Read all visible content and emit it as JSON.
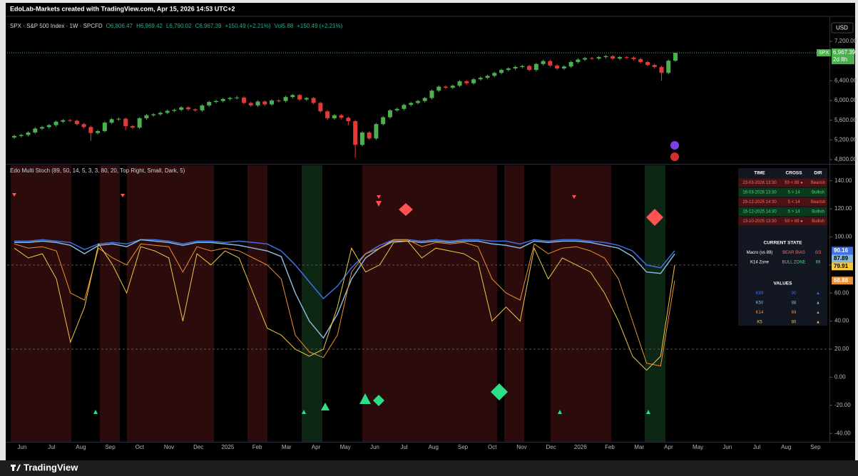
{
  "header": "EdoLab-Markets created with TradingView.com, Apr 15, 2026 14:53 UTC+2",
  "legend": [
    "SPX · S&P 500 Index · 1W · SPCFD",
    "O6,806.47",
    "H6,969.42",
    "L6,790.02",
    "C6,967.39",
    "+150.49 (+2.21%)",
    "Vol5.88",
    "+150.49 (+2.21%)"
  ],
  "currency": "USD",
  "price_tag": {
    "symbol": "SPX",
    "price": "6,967.39",
    "countdown": "2d 8h"
  },
  "time_labels": [
    "Jun",
    "Jul",
    "Aug",
    "Sep",
    "Oct",
    "Nov",
    "Dec",
    "2025",
    "Feb",
    "Mar",
    "Apr",
    "May",
    "Jun",
    "Jul",
    "Aug",
    "Sep",
    "Oct",
    "Nov",
    "Dec",
    "2026",
    "Feb",
    "Mar",
    "Apr",
    "May",
    "Jun",
    "Jul",
    "Aug",
    "Sep"
  ],
  "chart_data": [
    {
      "type": "candlestick",
      "up_color": "#4caf50",
      "down_color": "#e53935",
      "ylim": [
        4728,
        7605
      ],
      "yticks": [
        {
          "value": 7200,
          "label": "7,200.00"
        },
        {
          "value": 6400,
          "label": "6,400.00"
        },
        {
          "value": 6000,
          "label": "6,000.00"
        },
        {
          "value": 5600,
          "label": "5,600.00"
        },
        {
          "value": 5200,
          "label": "5,200.00"
        },
        {
          "value": 4800,
          "label": "4,800.00"
        }
      ],
      "grid": false,
      "ohlc": [
        [
          5250,
          5305,
          5220,
          5280
        ],
        [
          5280,
          5325,
          5250,
          5300
        ],
        [
          5300,
          5375,
          5270,
          5350
        ],
        [
          5350,
          5455,
          5320,
          5430
        ],
        [
          5430,
          5485,
          5400,
          5460
        ],
        [
          5460,
          5525,
          5430,
          5500
        ],
        [
          5500,
          5595,
          5470,
          5570
        ],
        [
          5570,
          5625,
          5540,
          5600
        ],
        [
          5600,
          5625,
          5560,
          5590
        ],
        [
          5590,
          5615,
          5490,
          5520
        ],
        [
          5520,
          5545,
          5430,
          5460
        ],
        [
          5460,
          5485,
          5180,
          5340
        ],
        [
          5340,
          5405,
          5310,
          5380
        ],
        [
          5380,
          5575,
          5350,
          5550
        ],
        [
          5550,
          5645,
          5520,
          5620
        ],
        [
          5620,
          5655,
          5590,
          5630
        ],
        [
          5630,
          5655,
          5400,
          5480
        ],
        [
          5480,
          5505,
          5420,
          5450
        ],
        [
          5450,
          5665,
          5420,
          5640
        ],
        [
          5640,
          5725,
          5610,
          5700
        ],
        [
          5700,
          5745,
          5670,
          5720
        ],
        [
          5720,
          5775,
          5690,
          5750
        ],
        [
          5750,
          5815,
          5720,
          5790
        ],
        [
          5790,
          5835,
          5760,
          5810
        ],
        [
          5810,
          5885,
          5780,
          5860
        ],
        [
          5860,
          5885,
          5790,
          5820
        ],
        [
          5820,
          5845,
          5770,
          5800
        ],
        [
          5800,
          5925,
          5770,
          5900
        ],
        [
          5900,
          5995,
          5870,
          5970
        ],
        [
          5970,
          6015,
          5940,
          5990
        ],
        [
          5990,
          6055,
          5960,
          6030
        ],
        [
          6030,
          6075,
          6000,
          6050
        ],
        [
          6050,
          6095,
          6020,
          6060
        ],
        [
          6060,
          6085,
          5920,
          5950
        ],
        [
          5950,
          5975,
          5870,
          5900
        ],
        [
          5900,
          6005,
          5870,
          5980
        ],
        [
          5980,
          6005,
          5890,
          5920
        ],
        [
          5920,
          6025,
          5890,
          6000
        ],
        [
          6000,
          6025,
          5960,
          5990
        ],
        [
          5990,
          6095,
          5960,
          6070
        ],
        [
          6070,
          6135,
          6040,
          6110
        ],
        [
          6110,
          6135,
          5990,
          6020
        ],
        [
          6020,
          6075,
          5990,
          6050
        ],
        [
          6050,
          6075,
          5920,
          5950
        ],
        [
          5950,
          5975,
          5750,
          5780
        ],
        [
          5780,
          5805,
          5610,
          5640
        ],
        [
          5640,
          5725,
          5610,
          5700
        ],
        [
          5700,
          5725,
          5620,
          5650
        ],
        [
          5650,
          5675,
          5500,
          5580
        ],
        [
          5580,
          5600,
          4840,
          5100
        ],
        [
          5100,
          5375,
          5070,
          5350
        ],
        [
          5350,
          5375,
          5200,
          5230
        ],
        [
          5230,
          5545,
          5200,
          5520
        ],
        [
          5520,
          5685,
          5490,
          5660
        ],
        [
          5660,
          5825,
          5630,
          5800
        ],
        [
          5800,
          5855,
          5770,
          5830
        ],
        [
          5830,
          5935,
          5800,
          5910
        ],
        [
          5910,
          5975,
          5880,
          5950
        ],
        [
          5950,
          6015,
          5920,
          5990
        ],
        [
          5990,
          6075,
          5960,
          6050
        ],
        [
          6050,
          6225,
          6020,
          6200
        ],
        [
          6200,
          6305,
          6170,
          6280
        ],
        [
          6280,
          6305,
          6230,
          6260
        ],
        [
          6260,
          6325,
          6230,
          6300
        ],
        [
          6300,
          6415,
          6270,
          6390
        ],
        [
          6390,
          6415,
          6320,
          6350
        ],
        [
          6350,
          6455,
          6320,
          6430
        ],
        [
          6430,
          6485,
          6400,
          6460
        ],
        [
          6460,
          6525,
          6430,
          6500
        ],
        [
          6500,
          6585,
          6470,
          6560
        ],
        [
          6560,
          6645,
          6530,
          6620
        ],
        [
          6620,
          6675,
          6590,
          6650
        ],
        [
          6650,
          6705,
          6620,
          6680
        ],
        [
          6680,
          6725,
          6650,
          6700
        ],
        [
          6700,
          6725,
          6590,
          6620
        ],
        [
          6620,
          6765,
          6590,
          6740
        ],
        [
          6740,
          6825,
          6710,
          6800
        ],
        [
          6800,
          6825,
          6680,
          6710
        ],
        [
          6710,
          6735,
          6620,
          6650
        ],
        [
          6650,
          6715,
          6620,
          6690
        ],
        [
          6690,
          6805,
          6660,
          6780
        ],
        [
          6780,
          6855,
          6750,
          6830
        ],
        [
          6830,
          6885,
          6800,
          6860
        ],
        [
          6860,
          6885,
          6820,
          6850
        ],
        [
          6850,
          6905,
          6820,
          6880
        ],
        [
          6880,
          6925,
          6850,
          6900
        ],
        [
          6900,
          6925,
          6820,
          6850
        ],
        [
          6850,
          6905,
          6820,
          6880
        ],
        [
          6880,
          6905,
          6840,
          6870
        ],
        [
          6870,
          6895,
          6810,
          6840
        ],
        [
          6840,
          6865,
          6750,
          6780
        ],
        [
          6780,
          6805,
          6690,
          6720
        ],
        [
          6720,
          6745,
          6650,
          6680
        ],
        [
          6680,
          6705,
          6400,
          6560
        ],
        [
          6560,
          6830,
          6530,
          6806.47
        ],
        [
          6806.47,
          6969.42,
          6790.02,
          6967.39
        ]
      ]
    },
    {
      "type": "line",
      "title": "Edo Multi Stoch (89, 50, 14, 5, 3, 3, 80, 20, Top Right, Small, Dark, 5)",
      "ylim": [
        -46,
        151
      ],
      "yticks": [
        {
          "value": 140,
          "label": "140.00"
        },
        {
          "value": 120,
          "label": "120.00"
        },
        {
          "value": 100,
          "label": "100.00"
        },
        {
          "value": 80,
          "label": "80.00"
        },
        {
          "value": 60,
          "label": "60.00"
        },
        {
          "value": 40,
          "label": "40.00"
        },
        {
          "value": 20,
          "label": "20.00"
        },
        {
          "value": 0,
          "label": "0.00"
        },
        {
          "value": -20,
          "label": "-20.00"
        },
        {
          "value": -40,
          "label": "-40.00"
        }
      ],
      "levels": [
        80,
        20
      ],
      "series": [
        {
          "name": "K89",
          "color": "#3f6fe8",
          "label_text": "#ffffff",
          "values": [
            97,
            97,
            98,
            97,
            96,
            91,
            95,
            96,
            95,
            98,
            98,
            97,
            95,
            97,
            97,
            96,
            97,
            96,
            95,
            90,
            80,
            68,
            56,
            65,
            78,
            88,
            94,
            98,
            98,
            97,
            98,
            97,
            98,
            98,
            97,
            97,
            95,
            98,
            97,
            98,
            98,
            97,
            96,
            94,
            90,
            80,
            78,
            90.16
          ]
        },
        {
          "name": "K50",
          "color": "#86b8d8",
          "label_text": "#000000",
          "values": [
            96,
            96,
            97,
            96,
            94,
            88,
            94,
            95,
            93,
            98,
            97,
            96,
            94,
            96,
            96,
            95,
            94,
            92,
            90,
            86,
            60,
            40,
            28,
            45,
            70,
            85,
            92,
            97,
            97,
            96,
            97,
            96,
            97,
            97,
            95,
            94,
            92,
            97,
            96,
            97,
            97,
            96,
            94,
            92,
            86,
            75,
            74,
            87.89
          ]
        },
        {
          "name": "K14",
          "color": "#f0902e",
          "label_text": "#ffffff",
          "values": [
            95,
            92,
            93,
            90,
            60,
            55,
            92,
            85,
            80,
            95,
            94,
            93,
            75,
            93,
            90,
            92,
            90,
            85,
            80,
            70,
            30,
            18,
            14,
            30,
            75,
            88,
            92,
            98,
            98,
            93,
            96,
            95,
            96,
            93,
            70,
            60,
            55,
            95,
            88,
            92,
            93,
            90,
            85,
            70,
            40,
            10,
            8,
            68.88
          ]
        },
        {
          "name": "K5",
          "color": "#f5c842",
          "label_text": "#000000",
          "values": [
            92,
            85,
            88,
            70,
            25,
            50,
            95,
            80,
            60,
            93,
            90,
            85,
            40,
            88,
            80,
            90,
            85,
            60,
            35,
            30,
            20,
            15,
            20,
            50,
            92,
            75,
            80,
            96,
            97,
            85,
            92,
            90,
            88,
            82,
            40,
            50,
            40,
            92,
            70,
            85,
            80,
            75,
            60,
            40,
            15,
            5,
            15,
            79.91
          ]
        }
      ]
    }
  ],
  "table": {
    "header": [
      "TIME",
      "CROSS",
      "DIR"
    ],
    "rows": [
      [
        "23-03-2026 13:30",
        "50 < 89 ●",
        "Bearish"
      ],
      [
        "16-03-2026 13:30",
        "5 > 14",
        "Bullish"
      ],
      [
        "29-12-2025 14:30",
        "5 < 14",
        "Bearish"
      ],
      [
        "15-12-2025 14:30",
        "5 > 14",
        "Bullish"
      ],
      [
        "13-10-2025 13:30",
        "50 > 89 ●",
        "Bullish"
      ]
    ],
    "state_title": "CURRENT STATE",
    "state_rows": [
      [
        "Macro (vs 89)",
        "BEAR BIAS",
        "0/3"
      ],
      [
        "K14 Zone",
        "BULL ZONE",
        "69"
      ]
    ],
    "values_title": "VALUES",
    "value_rows": [
      [
        "K89",
        "90",
        "▲"
      ],
      [
        "K50",
        "88",
        "▲"
      ],
      [
        "K14",
        "69",
        "▲"
      ],
      [
        "K5",
        "80",
        "▲"
      ]
    ]
  },
  "footer": "TradingView"
}
